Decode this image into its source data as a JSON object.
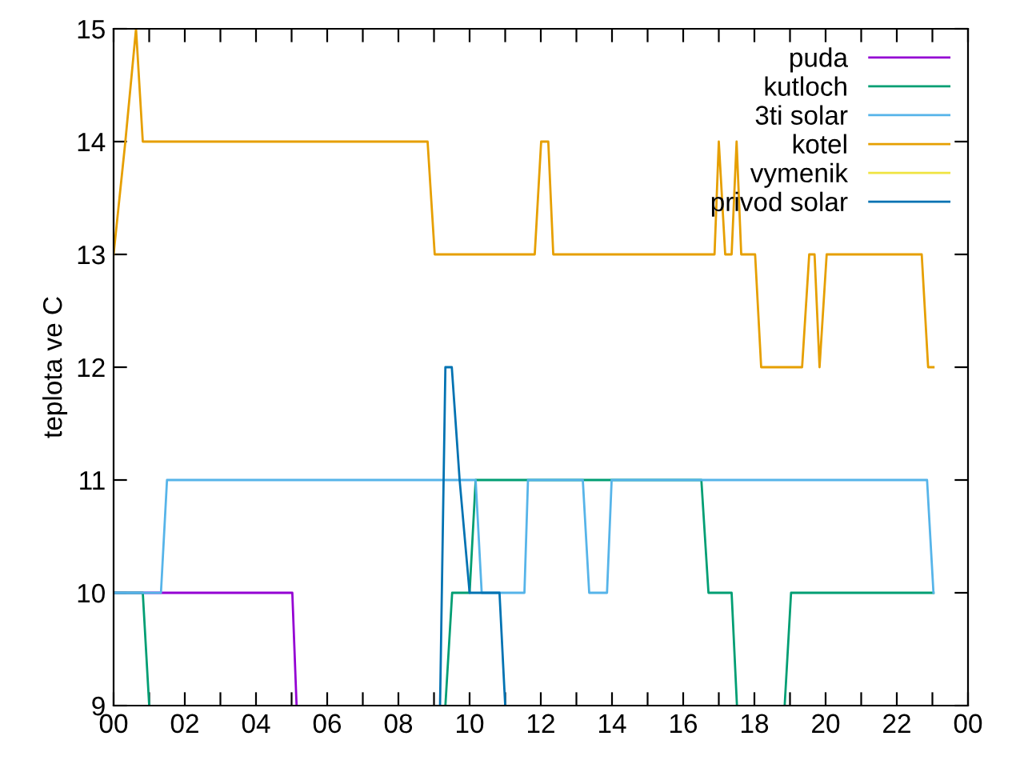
{
  "chart_data": {
    "type": "line",
    "ylabel": "teplota ve C",
    "xlim": [
      0,
      24
    ],
    "ylim": [
      9,
      15
    ],
    "xticks": [
      {
        "value": 0,
        "label": "00"
      },
      {
        "value": 1,
        "label": null
      },
      {
        "value": 2,
        "label": "02"
      },
      {
        "value": 3,
        "label": null
      },
      {
        "value": 4,
        "label": "04"
      },
      {
        "value": 5,
        "label": null
      },
      {
        "value": 6,
        "label": "06"
      },
      {
        "value": 7,
        "label": null
      },
      {
        "value": 8,
        "label": "08"
      },
      {
        "value": 9,
        "label": null
      },
      {
        "value": 10,
        "label": "10"
      },
      {
        "value": 11,
        "label": null
      },
      {
        "value": 12,
        "label": "12"
      },
      {
        "value": 13,
        "label": null
      },
      {
        "value": 14,
        "label": "14"
      },
      {
        "value": 15,
        "label": null
      },
      {
        "value": 16,
        "label": "16"
      },
      {
        "value": 17,
        "label": null
      },
      {
        "value": 18,
        "label": "18"
      },
      {
        "value": 19,
        "label": null
      },
      {
        "value": 20,
        "label": "20"
      },
      {
        "value": 21,
        "label": null
      },
      {
        "value": 22,
        "label": "22"
      },
      {
        "value": 23,
        "label": null
      },
      {
        "value": 24,
        "label": "00"
      }
    ],
    "yticks": [
      9,
      10,
      11,
      12,
      13,
      14,
      15
    ],
    "grid": false,
    "legend": "top right",
    "marker": "none",
    "line_style": "solid",
    "series": [
      {
        "name": "puda",
        "color": "#9400d3",
        "x": [
          0,
          5.02,
          5.14
        ],
        "values": [
          10,
          10,
          9
        ]
      },
      {
        "name": "kutloch",
        "color": "#009e73",
        "x": [
          0,
          0.82,
          1.0,
          5,
          9.32,
          9.51,
          10.0,
          10.17,
          16.51,
          16.71,
          17.36,
          17.51,
          18,
          18.85,
          19.03,
          23.03
        ],
        "values": [
          10,
          10,
          9,
          null,
          9,
          10,
          10,
          11,
          11,
          10,
          10,
          9,
          null,
          9,
          10,
          10
        ]
      },
      {
        "name": "3ti solar",
        "color": "#56b4e9",
        "x": [
          0,
          1.33,
          1.5,
          10.17,
          10.34,
          11.54,
          11.64,
          13.18,
          13.36,
          13.86,
          13.99,
          22.85,
          23.03
        ],
        "values": [
          10,
          10,
          11,
          11,
          10,
          10,
          11,
          11,
          10,
          10,
          11,
          11,
          10
        ]
      },
      {
        "name": "kotel",
        "color": "#e69f00",
        "x": [
          0,
          0.33,
          0.63,
          0.82,
          8.82,
          9.02,
          11.83,
          12.01,
          12.21,
          12.35,
          16.88,
          17.0,
          17.18,
          17.36,
          17.5,
          17.63,
          18.02,
          18.19,
          19.34,
          19.54,
          19.69,
          19.83,
          20.03,
          22.7,
          22.88,
          23.03
        ],
        "values": [
          13,
          14,
          15,
          14,
          14,
          13,
          13,
          14,
          14,
          13,
          13,
          14,
          13,
          13,
          14,
          13,
          13,
          12,
          12,
          13,
          13,
          12,
          13,
          13,
          12,
          12
        ]
      },
      {
        "name": "vymenik",
        "color": "#f0e442"
      },
      {
        "name": "privod solar",
        "color": "#0072b2",
        "x": [
          9.17,
          9.32,
          9.5,
          9.72,
          10.0,
          10.84,
          11.0
        ],
        "values": [
          9,
          12,
          12,
          11,
          10,
          10,
          9
        ]
      }
    ]
  }
}
